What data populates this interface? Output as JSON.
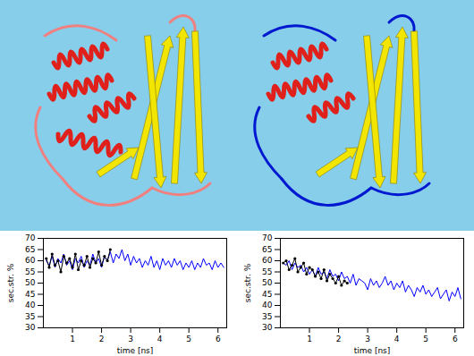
{
  "chart_data": [
    {
      "type": "line",
      "xlabel": "time [ns]",
      "ylabel": "sec.str. %",
      "xlim": [
        0,
        6.3
      ],
      "xticks": [
        1,
        2,
        3,
        4,
        5,
        6
      ],
      "ylim": [
        30,
        70
      ],
      "yticks": [
        30,
        35,
        40,
        45,
        50,
        55,
        60,
        65,
        70
      ],
      "series": [
        {
          "color": "#0000ff",
          "x": [
            0.1,
            0.2,
            0.3,
            0.4,
            0.5,
            0.6,
            0.7,
            0.8,
            0.9,
            1.0,
            1.1,
            1.2,
            1.3,
            1.4,
            1.5,
            1.6,
            1.7,
            1.8,
            1.9,
            2.0,
            2.1,
            2.2,
            2.3,
            2.4,
            2.5,
            2.6,
            2.7,
            2.8,
            2.9,
            3.0,
            3.1,
            3.2,
            3.3,
            3.4,
            3.5,
            3.6,
            3.7,
            3.8,
            3.9,
            4.0,
            4.1,
            4.2,
            4.3,
            4.4,
            4.5,
            4.6,
            4.7,
            4.8,
            4.9,
            5.0,
            5.1,
            5.2,
            5.3,
            5.4,
            5.5,
            5.6,
            5.7,
            5.8,
            5.9,
            6.0,
            6.1,
            6.2
          ],
          "values": [
            60,
            58,
            62,
            57,
            61,
            59,
            63,
            58,
            60,
            56,
            61,
            59,
            62,
            57,
            60,
            58,
            63,
            59,
            61,
            57,
            62,
            60,
            64,
            59,
            63,
            61,
            65,
            60,
            63,
            58,
            62,
            59,
            61,
            57,
            60,
            58,
            62,
            57,
            60,
            56,
            61,
            58,
            60,
            57,
            61,
            58,
            60,
            56,
            59,
            57,
            60,
            56,
            59,
            57,
            61,
            58,
            59,
            56,
            60,
            57,
            59,
            57
          ]
        },
        {
          "color": "#000000",
          "marker": "circle",
          "x": [
            0.1,
            0.2,
            0.3,
            0.4,
            0.5,
            0.6,
            0.7,
            0.8,
            0.9,
            1.0,
            1.1,
            1.2,
            1.3,
            1.4,
            1.5,
            1.6,
            1.7,
            1.8,
            1.9,
            2.0,
            2.1,
            2.2,
            2.3
          ],
          "values": [
            61,
            57,
            63,
            58,
            60,
            55,
            62,
            59,
            61,
            57,
            63,
            56,
            60,
            58,
            62,
            57,
            61,
            59,
            64,
            58,
            62,
            60,
            65
          ]
        }
      ]
    },
    {
      "type": "line",
      "xlabel": "time [ns]",
      "ylabel": "sec.str. %",
      "xlim": [
        0,
        6.3
      ],
      "xticks": [
        1,
        2,
        3,
        4,
        5,
        6
      ],
      "ylim": [
        30,
        70
      ],
      "yticks": [
        30,
        35,
        40,
        45,
        50,
        55,
        60,
        65,
        70
      ],
      "series": [
        {
          "color": "#0000ff",
          "x": [
            0.1,
            0.2,
            0.3,
            0.4,
            0.5,
            0.6,
            0.7,
            0.8,
            0.9,
            1.0,
            1.1,
            1.2,
            1.3,
            1.4,
            1.5,
            1.6,
            1.7,
            1.8,
            1.9,
            2.0,
            2.1,
            2.2,
            2.3,
            2.4,
            2.5,
            2.6,
            2.7,
            2.8,
            2.9,
            3.0,
            3.1,
            3.2,
            3.3,
            3.4,
            3.5,
            3.6,
            3.7,
            3.8,
            3.9,
            4.0,
            4.1,
            4.2,
            4.3,
            4.4,
            4.5,
            4.6,
            4.7,
            4.8,
            4.9,
            5.0,
            5.1,
            5.2,
            5.3,
            5.4,
            5.5,
            5.6,
            5.7,
            5.8,
            5.9,
            6.0,
            6.1,
            6.2
          ],
          "values": [
            59,
            58,
            60,
            56,
            59,
            57,
            58,
            55,
            57,
            54,
            56,
            53,
            57,
            54,
            55,
            52,
            56,
            53,
            54,
            51,
            55,
            52,
            53,
            50,
            54,
            49,
            52,
            51,
            50,
            47,
            52,
            49,
            51,
            48,
            50,
            53,
            49,
            51,
            47,
            50,
            48,
            51,
            46,
            49,
            47,
            44,
            48,
            46,
            49,
            45,
            47,
            44,
            46,
            48,
            43,
            45,
            47,
            42,
            46,
            44,
            48,
            43
          ]
        },
        {
          "color": "#000000",
          "marker": "circle",
          "x": [
            0.1,
            0.2,
            0.3,
            0.4,
            0.5,
            0.6,
            0.7,
            0.8,
            0.9,
            1.0,
            1.1,
            1.2,
            1.3,
            1.4,
            1.5,
            1.6,
            1.7,
            1.8,
            1.9,
            2.0,
            2.1,
            2.2,
            2.3
          ],
          "values": [
            59,
            60,
            56,
            58,
            61,
            55,
            57,
            59,
            54,
            57,
            56,
            53,
            55,
            52,
            56,
            51,
            54,
            52,
            50,
            53,
            49,
            51,
            50
          ]
        }
      ]
    }
  ]
}
